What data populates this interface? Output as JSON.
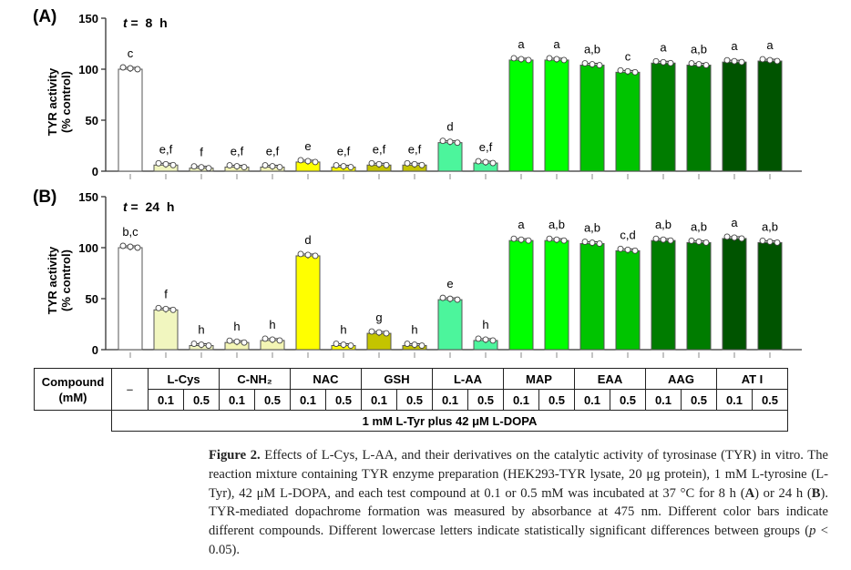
{
  "chart_data": [
    {
      "type": "bar",
      "panel": "(A)",
      "title_italic": "t",
      "title_rest": " =  8  h",
      "ylabel_line1": "TYR activity",
      "ylabel_line2": "(% control)",
      "ylim": [
        0,
        150
      ],
      "yticks": [
        "0",
        "50",
        "100",
        "150"
      ],
      "categories": [
        "–",
        "L-Cys 0.1",
        "L-Cys 0.5",
        "C-NH2 0.1",
        "C-NH2 0.5",
        "NAC 0.1",
        "NAC 0.5",
        "GSH 0.1",
        "GSH 0.5",
        "L-AA 0.1",
        "L-AA 0.5",
        "MAP 0.1",
        "MAP 0.5",
        "EAA 0.1",
        "EAA 0.5",
        "AAG 0.1",
        "AAG 0.5",
        "AT I 0.1",
        "AT I 0.5"
      ],
      "values": [
        100,
        6,
        3,
        4,
        4,
        9,
        4,
        6,
        6,
        28,
        8,
        109,
        109,
        104,
        97,
        106,
        104,
        107,
        108
      ],
      "letters": [
        "c",
        "e,f",
        "f",
        "e,f",
        "e,f",
        "e",
        "e,f",
        "e,f",
        "e,f",
        "d",
        "e,f",
        "a",
        "a",
        "a,b",
        "c",
        "a",
        "a,b",
        "a",
        "a"
      ]
    },
    {
      "type": "bar",
      "panel": "(B)",
      "title_italic": "t",
      "title_rest": " =  24  h",
      "ylabel_line1": "TYR activity",
      "ylabel_line2": "(% control)",
      "ylim": [
        0,
        150
      ],
      "yticks": [
        "0",
        "50",
        "100",
        "150"
      ],
      "categories": [
        "–",
        "L-Cys 0.1",
        "L-Cys 0.5",
        "C-NH2 0.1",
        "C-NH2 0.5",
        "NAC 0.1",
        "NAC 0.5",
        "GSH 0.1",
        "GSH 0.5",
        "L-AA 0.1",
        "L-AA 0.5",
        "MAP 0.1",
        "MAP 0.5",
        "EAA 0.1",
        "EAA 0.5",
        "AAG 0.1",
        "AAG 0.5",
        "AT I 0.1",
        "AT I 0.5"
      ],
      "values": [
        100,
        39,
        4,
        7,
        9,
        92,
        4,
        16,
        4,
        49,
        9,
        107,
        107,
        104,
        97,
        107,
        105,
        109,
        105
      ],
      "letters": [
        "b,c",
        "f",
        "h",
        "h",
        "h",
        "d",
        "h",
        "g",
        "h",
        "e",
        "h",
        "a",
        "a,b",
        "a,b",
        "c,d",
        "a,b",
        "a,b",
        "a",
        "a,b"
      ]
    }
  ],
  "colors": [
    "#ffffff",
    "#f1f6bf",
    "#f1f6bf",
    "#f3f5b4",
    "#f3f5b4",
    "#ffff00",
    "#ffff00",
    "#c4c400",
    "#c4c400",
    "#4cf59c",
    "#4cf59c",
    "#00ff00",
    "#00ff00",
    "#00c400",
    "#00c400",
    "#007c00",
    "#007c00",
    "#005400",
    "#005400"
  ],
  "table": {
    "header": "Compound",
    "header_unit": "(mM)",
    "control": "–",
    "compounds": [
      "L-Cys",
      "C-NH₂",
      "NAC",
      "GSH",
      "L-AA",
      "MAP",
      "EAA",
      "AAG",
      "AT I"
    ],
    "concentrations": [
      "0.1",
      "0.5"
    ],
    "footer": "1  mM L-Tyr plus 42 μM L-DOPA"
  },
  "caption": {
    "label": "Figure 2.",
    "text1": " Effects of L-Cys, L-AA, and their derivatives on the catalytic activity of tyrosinase (TYR) in vitro.  The reaction mixture containing TYR enzyme preparation (HEK293-TYR lysate, 20 μg protein), 1 mM L-tyrosine (L-Tyr), 42 μM L-DOPA, and each test compound at 0.1 or 0.5 mM was incubated at 37 °C for 8 h (",
    "a": "A",
    "text2": ") or 24 h (",
    "b": "B",
    "text3": "). TYR-mediated dopachrome formation was measured by absorbance at 475 nm. Different color bars indicate different compounds. Different lowercase letters indicate statistically significant differences between groups (",
    "p": "p",
    "text4": " < 0.05)."
  }
}
